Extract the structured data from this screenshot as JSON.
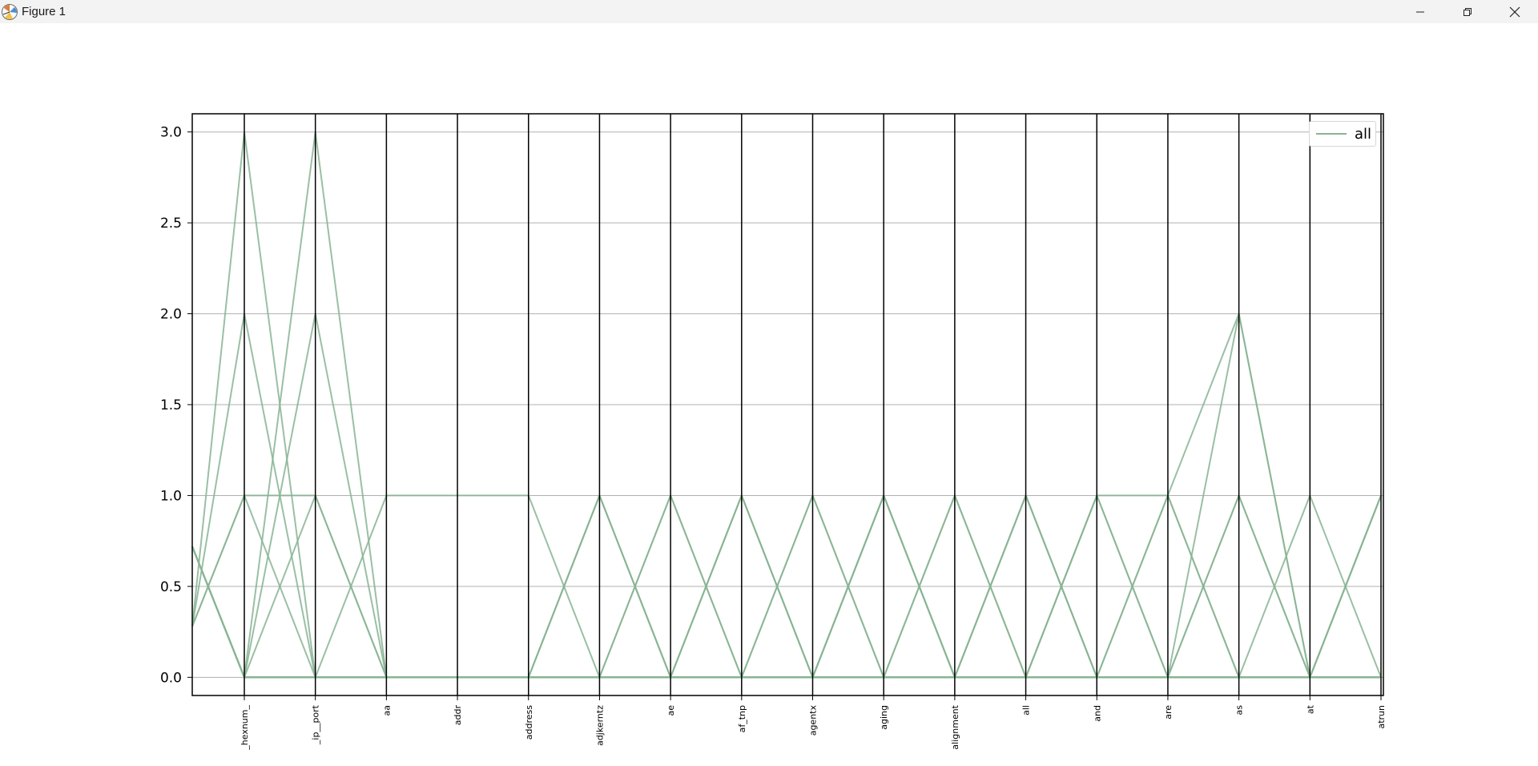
{
  "window": {
    "title": "Figure 1",
    "icon": "matplotlib-figure-icon"
  },
  "controls": {
    "minimize": "minimize-icon",
    "maximize": "restore-icon",
    "close": "close-icon"
  },
  "colors": {
    "line": "#88b494",
    "axis": "#000000",
    "grid": "#b0b0b0",
    "titlebar": "#f3f3f3"
  },
  "legend": {
    "label": "all",
    "placement": "top-right"
  },
  "chart_data": {
    "type": "line",
    "subtype": "parallel-coordinates",
    "categories": [
      "_hexnum_",
      "_ip__port",
      "aa",
      "addr",
      "address",
      "adjkerntz",
      "ae",
      "af_tnp",
      "agentx",
      "aging",
      "alignment",
      "all",
      "and",
      "are",
      "as",
      "at",
      "atrun"
    ],
    "ylim": [
      -0.1,
      3.1
    ],
    "yticks": [
      0.0,
      0.5,
      1.0,
      1.5,
      2.0,
      2.5,
      3.0
    ],
    "ytick_labels": [
      "0.0",
      "0.5",
      "1.0",
      "1.5",
      "2.0",
      "2.5",
      "3.0"
    ],
    "grid": true,
    "legend_placement": "top-right",
    "series_color": "#88b494",
    "series": [
      {
        "name": "all",
        "left_stub": 0.28,
        "values": [
          3,
          0,
          0,
          0,
          0,
          0,
          0,
          0,
          0,
          0,
          0,
          0,
          0,
          0,
          0,
          0,
          0
        ]
      },
      {
        "name": "all",
        "left_stub": 0.72,
        "values": [
          0,
          3,
          0,
          0,
          0,
          0,
          0,
          0,
          0,
          0,
          0,
          0,
          0,
          0,
          0,
          0,
          0
        ]
      },
      {
        "name": "all",
        "left_stub": 0.28,
        "values": [
          1,
          0,
          0,
          0,
          0,
          0,
          0,
          0,
          0,
          0,
          0,
          0,
          0,
          0,
          0,
          0,
          0
        ]
      },
      {
        "name": "all",
        "left_stub": 0.72,
        "values": [
          0,
          1,
          0,
          0,
          0,
          0,
          0,
          0,
          0,
          0,
          0,
          0,
          0,
          0,
          0,
          0,
          0
        ]
      },
      {
        "name": "all",
        "left_stub": 0.72,
        "values": [
          0,
          2,
          0,
          0,
          0,
          0,
          0,
          0,
          0,
          0,
          0,
          0,
          0,
          0,
          0,
          0,
          0
        ]
      },
      {
        "name": "all",
        "left_stub": 0.28,
        "values": [
          2,
          0,
          0,
          0,
          0,
          0,
          0,
          0,
          0,
          0,
          0,
          0,
          0,
          0,
          0,
          0,
          0
        ]
      },
      {
        "name": "all",
        "left_stub": 0.72,
        "values": [
          0,
          0,
          0,
          0,
          0,
          0,
          0,
          0,
          0,
          0,
          0,
          0,
          0,
          0,
          0,
          0,
          0
        ]
      },
      {
        "name": "all",
        "left_stub": 0.28,
        "values": [
          1,
          1,
          0,
          0,
          0,
          0,
          0,
          0,
          0,
          0,
          0,
          0,
          0,
          0,
          0,
          0,
          0
        ]
      },
      {
        "name": "all",
        "left_stub": 0.72,
        "values": [
          0,
          0,
          1,
          1,
          1,
          0,
          0,
          0,
          0,
          0,
          0,
          0,
          0,
          0,
          0,
          0,
          0
        ]
      },
      {
        "name": "all",
        "left_stub": 0.72,
        "values": [
          0,
          0,
          0,
          0,
          0,
          1,
          0,
          1,
          0,
          1,
          0,
          1,
          0,
          0,
          0,
          0,
          0
        ]
      },
      {
        "name": "all",
        "left_stub": 0.72,
        "values": [
          0,
          0,
          0,
          0,
          0,
          1,
          0,
          0,
          1,
          0,
          1,
          0,
          1,
          1,
          0,
          1,
          0
        ]
      },
      {
        "name": "all",
        "left_stub": 0.72,
        "values": [
          0,
          0,
          0,
          0,
          0,
          0,
          1,
          0,
          0,
          1,
          0,
          0,
          0,
          0,
          2,
          0,
          1
        ]
      },
      {
        "name": "all",
        "left_stub": 0.72,
        "values": [
          0,
          0,
          0,
          0,
          0,
          0,
          0,
          1,
          0,
          0,
          1,
          0,
          1,
          0,
          1,
          0,
          1
        ]
      },
      {
        "name": "all",
        "left_stub": 0.72,
        "values": [
          0,
          0,
          0,
          0,
          0,
          1,
          0,
          0,
          0,
          1,
          0,
          1,
          0,
          1,
          0,
          0,
          1
        ]
      },
      {
        "name": "all",
        "left_stub": 0.72,
        "values": [
          0,
          0,
          0,
          0,
          0,
          0,
          1,
          0,
          1,
          0,
          0,
          1,
          0,
          1,
          2,
          0,
          0
        ]
      },
      {
        "name": "all",
        "left_stub": 0.72,
        "values": [
          0,
          0,
          0,
          0,
          0,
          0,
          0,
          1,
          0,
          1,
          0,
          0,
          1,
          0,
          1,
          0,
          1
        ]
      }
    ]
  }
}
